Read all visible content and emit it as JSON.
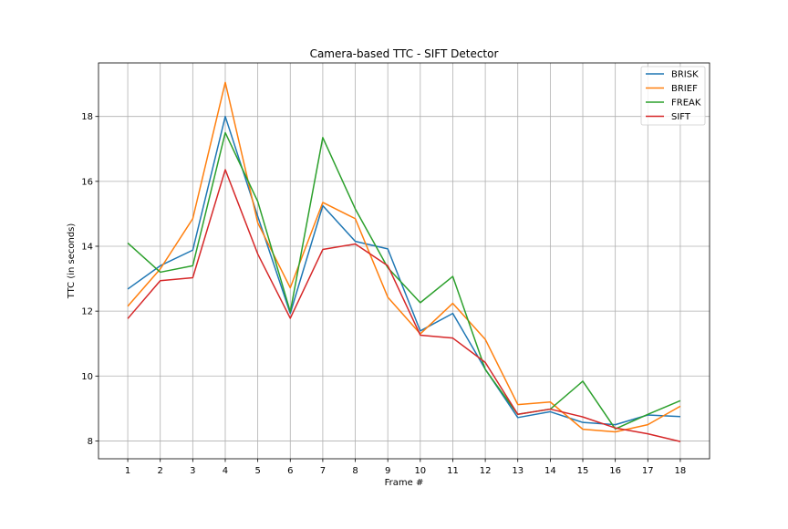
{
  "chart_data": {
    "type": "line",
    "title": "Camera-based TTC - SIFT Detector",
    "xlabel": "Frame #",
    "ylabel": "TTC (in seconds)",
    "x": [
      1,
      2,
      3,
      4,
      5,
      6,
      7,
      8,
      9,
      10,
      11,
      12,
      13,
      14,
      15,
      16,
      17,
      18
    ],
    "xlim": [
      0.1,
      18.9
    ],
    "ylim": [
      7.45,
      19.65
    ],
    "yticks": [
      8,
      10,
      12,
      14,
      16,
      18
    ],
    "grid": true,
    "legend_position": "upper right",
    "series": [
      {
        "name": "BRISK",
        "color": "#1f77b4",
        "values": [
          12.68,
          13.4,
          13.88,
          18.0,
          14.92,
          11.93,
          15.25,
          14.15,
          13.92,
          11.39,
          11.93,
          10.21,
          8.72,
          8.9,
          8.57,
          8.5,
          8.8,
          8.75
        ]
      },
      {
        "name": "BRIEF",
        "color": "#ff7f0e",
        "values": [
          12.15,
          13.3,
          14.85,
          19.05,
          14.72,
          12.72,
          15.35,
          14.85,
          12.43,
          11.3,
          12.24,
          11.13,
          9.12,
          9.2,
          8.36,
          8.28,
          8.5,
          9.07
        ]
      },
      {
        "name": "FREAK",
        "color": "#2ca02c",
        "values": [
          14.1,
          13.2,
          13.4,
          17.5,
          15.38,
          11.98,
          17.35,
          15.15,
          13.34,
          12.26,
          13.07,
          10.2,
          8.82,
          8.98,
          9.84,
          8.37,
          8.82,
          9.24
        ]
      },
      {
        "name": "SIFT",
        "color": "#d62728",
        "values": [
          11.77,
          12.94,
          13.03,
          16.36,
          13.76,
          11.78,
          13.9,
          14.07,
          13.4,
          11.26,
          11.17,
          10.42,
          8.82,
          8.98,
          8.74,
          8.4,
          8.22,
          7.98
        ]
      }
    ]
  }
}
